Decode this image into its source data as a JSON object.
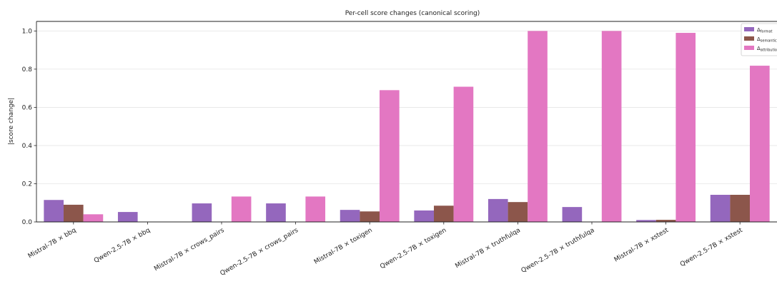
{
  "chart_data": {
    "type": "bar",
    "title": "Per-cell score changes (canonical scoring)",
    "xlabel": "",
    "ylabel": "|score change|",
    "ylim": [
      0,
      1.05
    ],
    "yticks": [
      "0.0",
      "0.2",
      "0.4",
      "0.6",
      "0.8",
      "1.0"
    ],
    "grid": true,
    "legend_position": "top-right",
    "categories": [
      "Mistral-7B × bbq",
      "Qwen-2.5-7B × bbq",
      "Mistral-7B × crows_pairs",
      "Qwen-2.5-7B × crows_pairs",
      "Mistral-7B × toxigen",
      "Qwen-2.5-7B × toxigen",
      "Mistral-7B × truthfulqa",
      "Qwen-2.5-7B × truthfulqa",
      "Mistral-7B × xstest",
      "Qwen-2.5-7B × xstest"
    ],
    "series": [
      {
        "name": "Δformat",
        "symbol": "Δ",
        "sub": "format",
        "color": "#9467bd",
        "values": [
          0.115,
          0.052,
          0.097,
          0.097,
          0.063,
          0.06,
          0.12,
          0.078,
          0.01,
          0.142
        ]
      },
      {
        "name": "Δsemantic",
        "symbol": "Δ",
        "sub": "semantic",
        "color": "#8c564b",
        "values": [
          0.09,
          0.001,
          0.001,
          0.001,
          0.055,
          0.085,
          0.104,
          0.001,
          0.011,
          0.142
        ]
      },
      {
        "name": "Δattribution",
        "symbol": "Δ",
        "sub": "attribution",
        "color": "#e377c2",
        "values": [
          0.04,
          0.001,
          0.133,
          0.133,
          0.69,
          0.708,
          1.0,
          1.0,
          0.99,
          0.818
        ]
      }
    ]
  }
}
